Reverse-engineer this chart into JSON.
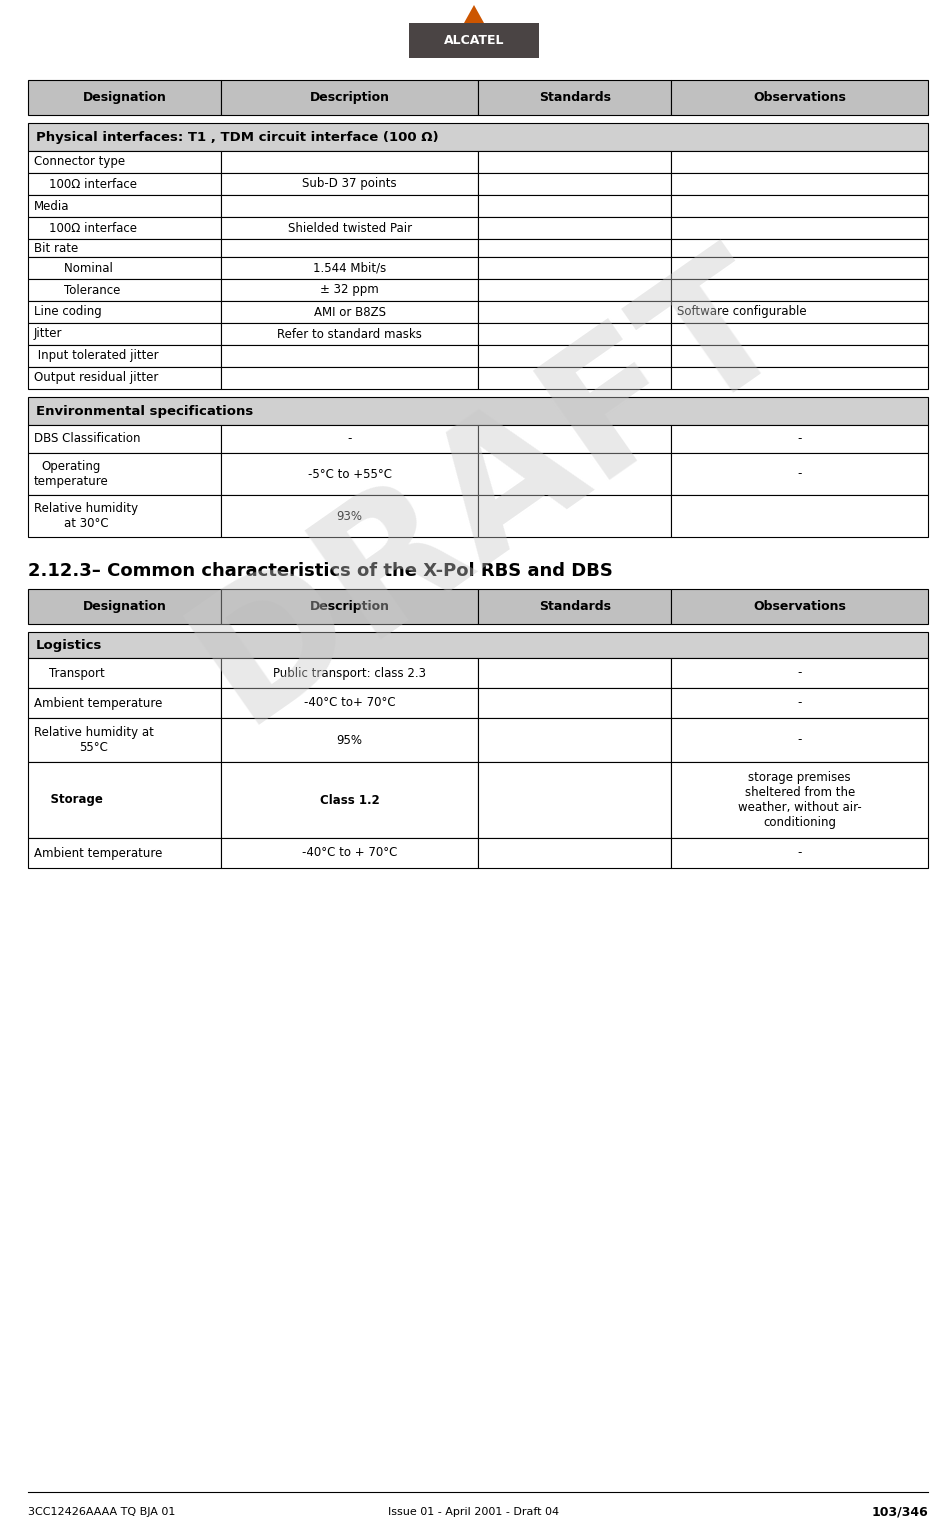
{
  "header_bg": "#c0c0c0",
  "section_bg": "#d0d0d0",
  "white_bg": "#ffffff",
  "border_color": "#000000",
  "text_color": "#000000",
  "draft_color": "#b0b0b0",
  "alcatel_bg": "#4a4444",
  "alcatel_arrow_color": "#cc5500",
  "footer_left": "3CC12426AAAA TQ BJA 01",
  "footer_center": "Issue 01 - April 2001 - Draft 04",
  "footer_right": "103/346",
  "section_title": "2.12.3– Common characteristics of the X-Pol RBS and DBS",
  "table1_headers": [
    "Designation",
    "Description",
    "Standards",
    "Observations"
  ],
  "table1_section": "Physical interfaces: T1 , TDM circuit interface (100 Ω)",
  "table2_section": "Environmental specifications",
  "table3_headers": [
    "Designation",
    "Description",
    "Standards",
    "Observations"
  ],
  "table3_section": "Logistics",
  "col_props": [
    0.215,
    0.285,
    0.215,
    0.285
  ],
  "lm": 28,
  "rm": 928
}
